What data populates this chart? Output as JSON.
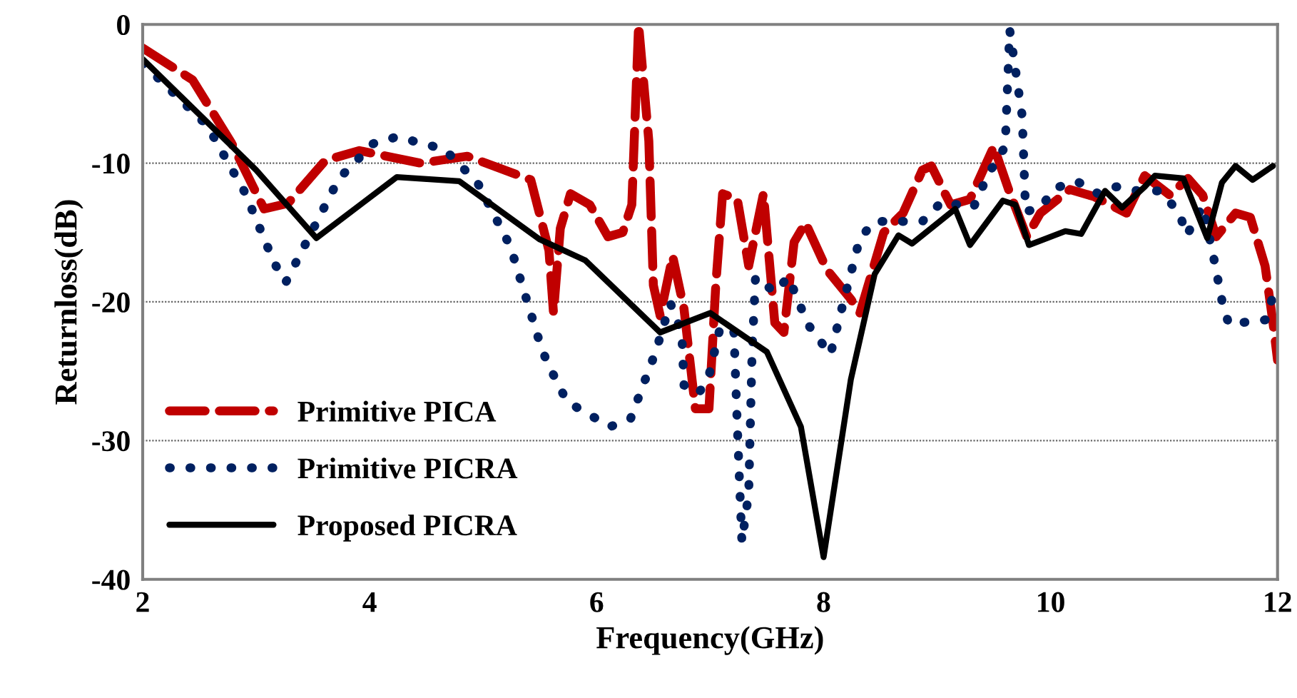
{
  "chart_data": {
    "type": "line",
    "xlabel": "Frequency(GHz)",
    "ylabel": "Returnloss(dB)",
    "xlim": [
      2,
      12
    ],
    "ylim": [
      -40,
      0
    ],
    "xticks": [
      2,
      4,
      6,
      8,
      10,
      12
    ],
    "yticks": [
      -40,
      -30,
      -20,
      -10,
      0
    ],
    "grid": "y",
    "legend": "bottom left",
    "series": [
      {
        "name": "Primitive PICA",
        "color": "#c00000",
        "line_style": "dashed",
        "x": [
          2.0,
          2.44,
          2.78,
          3.07,
          3.28,
          3.61,
          3.91,
          4.45,
          4.86,
          5.42,
          5.58,
          5.62,
          5.68,
          5.77,
          5.94,
          6.1,
          6.23,
          6.31,
          6.37,
          6.46,
          6.5,
          6.56,
          6.67,
          6.77,
          6.87,
          6.99,
          7.05,
          7.11,
          7.24,
          7.34,
          7.47,
          7.57,
          7.65,
          7.74,
          7.84,
          8.03,
          8.24,
          8.32,
          8.53,
          8.7,
          8.87,
          8.95,
          9.07,
          9.12,
          9.29,
          9.5,
          9.63,
          9.79,
          9.91,
          10.17,
          10.38,
          10.67,
          10.83,
          11.05,
          11.21,
          11.34,
          11.46,
          11.63,
          11.76,
          11.89,
          11.96,
          12.0
        ],
        "values": [
          -1.7,
          -4,
          -8.5,
          -13.3,
          -12.9,
          -9.8,
          -9.1,
          -10,
          -9.5,
          -11.2,
          -16.3,
          -20.8,
          -14.7,
          -12.2,
          -13,
          -15.3,
          -15,
          -13,
          0,
          -8.4,
          -18.8,
          -21,
          -16.7,
          -20.5,
          -27.7,
          -27.7,
          -18.8,
          -12.2,
          -12.6,
          -17.4,
          -12.2,
          -21.5,
          -22.2,
          -15.7,
          -14.3,
          -17.7,
          -19.8,
          -20.8,
          -15,
          -13.6,
          -10.5,
          -10.2,
          -12.2,
          -13,
          -12.6,
          -8.8,
          -11.9,
          -15.3,
          -13.6,
          -11.9,
          -12.4,
          -13.6,
          -10.9,
          -12.3,
          -11.1,
          -12.3,
          -15.3,
          -13.6,
          -13.9,
          -17.4,
          -21.5,
          -24.2
        ]
      },
      {
        "name": "Primitive PICRA",
        "color": "#002060",
        "line_style": "dotted",
        "x": [
          2.0,
          2.57,
          2.9,
          3.16,
          3.26,
          3.53,
          3.73,
          4.03,
          4.24,
          4.66,
          4.95,
          5.24,
          5.49,
          5.56,
          5.74,
          6.12,
          6.3,
          6.52,
          6.65,
          6.75,
          6.77,
          6.9,
          6.99,
          7.09,
          7.21,
          7.24,
          7.28,
          7.34,
          7.37,
          7.4,
          7.57,
          7.69,
          7.86,
          8.06,
          8.16,
          8.32,
          8.45,
          8.87,
          9.04,
          9.32,
          9.45,
          9.6,
          9.64,
          9.75,
          9.78,
          9.91,
          10.04,
          10.23,
          10.42,
          10.58,
          10.77,
          10.96,
          11.13,
          11.2,
          11.34,
          11.43,
          11.51,
          11.57,
          11.89,
          11.96
        ],
        "values": [
          -2.8,
          -7.3,
          -12.1,
          -17.2,
          -18.6,
          -14.3,
          -11.1,
          -8.6,
          -8.1,
          -9,
          -11.4,
          -16,
          -22.7,
          -24.3,
          -27.2,
          -29,
          -28.4,
          -23.6,
          -20.1,
          -22.2,
          -26,
          -26.6,
          -25.3,
          -21.8,
          -22.2,
          -29,
          -37.3,
          -33.8,
          -23.6,
          -18.2,
          -19.3,
          -18.2,
          -21.6,
          -23.8,
          -20.5,
          -15.4,
          -14.2,
          -14.2,
          -12.8,
          -13.2,
          -10.8,
          -8.8,
          -0.4,
          -6.6,
          -13.5,
          -13.2,
          -11.8,
          -11.3,
          -12.2,
          -11.7,
          -12,
          -12,
          -13.5,
          -15.2,
          -13.1,
          -16.5,
          -19.9,
          -21.6,
          -21.3,
          -19.6
        ]
      },
      {
        "name": "Proposed PICRA",
        "color": "#000000",
        "line_style": "solid",
        "x": [
          2.0,
          2.5,
          3.0,
          3.53,
          4.24,
          4.79,
          5.5,
          5.9,
          6.56,
          7.0,
          7.5,
          7.8,
          8.0,
          8.24,
          8.45,
          8.66,
          8.78,
          9.16,
          9.29,
          9.58,
          9.69,
          9.81,
          10.13,
          10.27,
          10.48,
          10.63,
          10.83,
          10.92,
          11.17,
          11.38,
          11.51,
          11.63,
          11.78,
          11.96
        ],
        "values": [
          -2.5,
          -6.5,
          -10.5,
          -15.4,
          -11,
          -11.3,
          -15.5,
          -17,
          -22.2,
          -20.8,
          -23.6,
          -29,
          -38.4,
          -25.6,
          -18,
          -15.2,
          -15.8,
          -13.3,
          -15.9,
          -12.7,
          -13,
          -15.9,
          -14.9,
          -15.1,
          -12,
          -13.2,
          -11.7,
          -10.9,
          -11.1,
          -15.4,
          -11.4,
          -10.2,
          -11.2,
          -10.2
        ]
      }
    ]
  }
}
